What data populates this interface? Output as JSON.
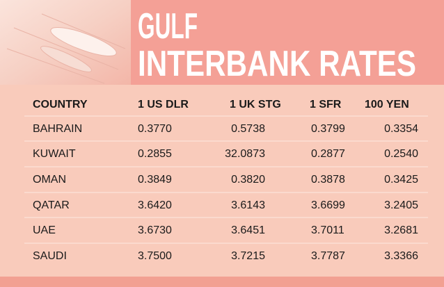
{
  "header": {
    "title_line1": "GULF",
    "title_line2": "INTERBANK RATES"
  },
  "table": {
    "columns": [
      "COUNTRY",
      "1 US DLR",
      "1 UK STG",
      "1 SFR",
      "100 YEN"
    ],
    "rows": [
      [
        "BAHRAIN",
        "0.3770",
        "0.5738",
        "0.3799",
        "0.3354"
      ],
      [
        "KUWAIT",
        "0.2855",
        "32.0873",
        "0.2877",
        "0.2540"
      ],
      [
        "OMAN",
        "0.3849",
        "0.3820",
        "0.3878",
        "0.3425"
      ],
      [
        "QATAR",
        "3.6420",
        "3.6143",
        "3.6699",
        "3.2405"
      ],
      [
        "UAE",
        "3.6730",
        "3.6451",
        "3.7011",
        "3.2681"
      ],
      [
        "SAUDI",
        "3.7500",
        "3.7215",
        "3.7787",
        "3.3366"
      ]
    ]
  }
}
